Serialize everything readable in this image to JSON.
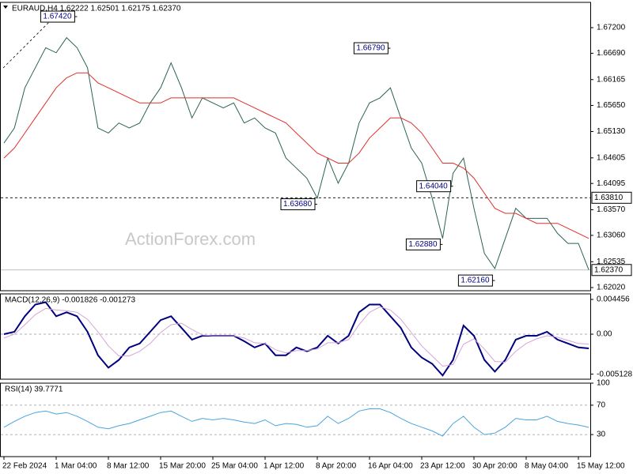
{
  "chart_data": [
    {
      "type": "line",
      "title": "EURAUD,H4 1.62222 1.62501 1.62175 1.62370",
      "watermark": "ActionForex.com",
      "ylim": [
        1.61957,
        1.67704
      ],
      "yticks": [
        {
          "value": 1.672,
          "label": "1.67200"
        },
        {
          "value": 1.6669,
          "label": "1.66690"
        },
        {
          "value": 1.66165,
          "label": "1.66165"
        },
        {
          "value": 1.6565,
          "label": "1.65650"
        },
        {
          "value": 1.6513,
          "label": "1.65130"
        },
        {
          "value": 1.64605,
          "label": "1.64605"
        },
        {
          "value": 1.64095,
          "label": "1.64095"
        },
        {
          "value": 1.6357,
          "label": "1.63570"
        },
        {
          "value": 1.6306,
          "label": "1.63060"
        },
        {
          "value": 1.62535,
          "label": "1.62535"
        },
        {
          "value": 1.6202,
          "label": "1.62020"
        }
      ],
      "series": [
        {
          "color": "#2b6357",
          "values": [
            1.649,
            1.652,
            1.66,
            1.664,
            1.668,
            1.667,
            1.67,
            1.668,
            1.664,
            1.652,
            1.651,
            1.653,
            1.652,
            1.653,
            1.657,
            1.66,
            1.665,
            1.66,
            1.654,
            1.658,
            1.657,
            1.656,
            1.657,
            1.653,
            1.654,
            1.652,
            1.651,
            1.646,
            1.644,
            1.642,
            1.638,
            1.646,
            1.641,
            1.645,
            1.653,
            1.657,
            1.658,
            1.66,
            1.654,
            1.648,
            1.645,
            1.638,
            1.63,
            1.643,
            1.646,
            1.636,
            1.627,
            1.624,
            1.63,
            1.636,
            1.634,
            1.634,
            1.634,
            1.631,
            1.629,
            1.629,
            1.6237
          ]
        },
        {
          "color": "#e0302a",
          "values": [
            1.646,
            1.648,
            1.651,
            1.654,
            1.657,
            1.66,
            1.662,
            1.663,
            1.663,
            1.661,
            1.66,
            1.659,
            1.658,
            1.657,
            1.657,
            1.657,
            1.658,
            1.658,
            1.658,
            1.658,
            1.658,
            1.658,
            1.658,
            1.657,
            1.656,
            1.655,
            1.654,
            1.653,
            1.651,
            1.649,
            1.647,
            1.646,
            1.645,
            1.645,
            1.647,
            1.65,
            1.652,
            1.654,
            1.654,
            1.653,
            1.651,
            1.648,
            1.645,
            1.645,
            1.644,
            1.642,
            1.639,
            1.636,
            1.635,
            1.635,
            1.634,
            1.633,
            1.633,
            1.633,
            1.632,
            1.631,
            1.63
          ]
        }
      ],
      "annotations": [
        {
          "label": "1.67420",
          "value": 1.6742,
          "x": 7
        },
        {
          "label": "1.66790",
          "value": 1.6679,
          "x": 37
        },
        {
          "label": "1.64040",
          "value": 1.6404,
          "x": 43
        },
        {
          "label": "1.63680",
          "value": 1.6368,
          "x": 30
        },
        {
          "label": "1.62880",
          "value": 1.6288,
          "x": 42
        },
        {
          "label": "1.62160",
          "value": 1.6216,
          "x": 47
        }
      ],
      "levels": [
        {
          "value": 1.6381,
          "label": "1.63810"
        }
      ],
      "last_price": {
        "value": 1.6237,
        "label": "1.62370"
      }
    },
    {
      "type": "line",
      "title": "MACD(12,26,9) -0.001826 -0.001273",
      "ylim": [
        -0.005774,
        0.005165
      ],
      "yticks": [
        0.004456,
        {
          "value": 0,
          "label": "0.00"
        },
        -0.005128
      ],
      "levels": [
        0
      ],
      "series": [
        {
          "color": "#000080",
          "values": [
            0,
            0.0003,
            0.0023,
            0.0038,
            0.0041,
            0.0023,
            0.0028,
            0.0023,
            0.0003,
            -0.0027,
            -0.0043,
            -0.0033,
            -0.0017,
            -0.0012,
            0.0003,
            0.0018,
            0.0023,
            0.0008,
            -0.0007,
            -0.0002,
            -0.0002,
            -0.0002,
            -0.0002,
            -0.0009,
            -0.0017,
            -0.0012,
            -0.0027,
            -0.0027,
            -0.0017,
            -0.0022,
            -0.0017,
            -0.0002,
            -0.0012,
            -0.0002,
            0.0028,
            0.0038,
            0.0038,
            0.0023,
            0.0008,
            -0.0017,
            -0.003,
            -0.0038,
            -0.0053,
            -0.0033,
            0.0011,
            -0.0002,
            -0.0033,
            -0.0048,
            -0.0033,
            -0.0007,
            -0.0002,
            -0.0002,
            0.0003,
            -0.0007,
            -0.0012,
            -0.0017,
            -0.001826
          ]
        },
        {
          "color": "#d4a6d4",
          "values": [
            -0.0005,
            0,
            0.0012,
            0.0025,
            0.0033,
            0.0031,
            0.003,
            0.0028,
            0.0019,
            0.0003,
            -0.0015,
            -0.0028,
            -0.0028,
            -0.0022,
            -0.0012,
            0.0002,
            0.0012,
            0.0014,
            0.0006,
            -0.0001,
            -0.0002,
            -0.0002,
            -0.0002,
            -0.0005,
            -0.0011,
            -0.0012,
            -0.002,
            -0.0024,
            -0.0021,
            -0.0021,
            -0.0019,
            -0.0011,
            -0.0011,
            -0.0007,
            0.0012,
            0.0028,
            0.0035,
            0.0031,
            0.0019,
            0.0002,
            -0.0015,
            -0.0028,
            -0.0041,
            -0.0039,
            -0.0013,
            -0.0006,
            -0.0019,
            -0.0035,
            -0.0036,
            -0.0022,
            -0.0012,
            -0.0006,
            -0.0002,
            -0.0004,
            -0.0008,
            -0.0012,
            -0.001273
          ]
        }
      ]
    },
    {
      "type": "line",
      "title": "RSI(14) 39.7771",
      "ylim": [
        0,
        100
      ],
      "yticks": [
        100,
        70,
        30
      ],
      "levels": [
        70,
        30
      ],
      "series": [
        {
          "color": "#4aa3df",
          "values": [
            40,
            48,
            55,
            60,
            62,
            58,
            60,
            55,
            48,
            40,
            38,
            42,
            45,
            50,
            55,
            60,
            62,
            55,
            48,
            52,
            50,
            52,
            50,
            47,
            45,
            50,
            42,
            45,
            44,
            40,
            42,
            55,
            45,
            52,
            62,
            65,
            65,
            60,
            52,
            45,
            40,
            35,
            28,
            45,
            55,
            40,
            30,
            32,
            40,
            52,
            50,
            50,
            55,
            48,
            45,
            43,
            39.7771
          ]
        }
      ],
      "categories": [
        "22 Feb 2024",
        null,
        null,
        null,
        null,
        "1 Mar 04:00",
        null,
        null,
        null,
        null,
        "8 Mar 12:00",
        null,
        null,
        null,
        null,
        "15 Mar 20:00",
        null,
        null,
        null,
        null,
        "25 Mar 04:00",
        null,
        null,
        null,
        null,
        "1 Apr 12:00",
        null,
        null,
        null,
        null,
        "8 Apr 20:00",
        null,
        null,
        null,
        null,
        "16 Apr 04:00",
        null,
        null,
        null,
        null,
        "23 Apr 12:00",
        null,
        null,
        null,
        null,
        "30 Apr 20:00",
        null,
        null,
        null,
        null,
        "8 May 04:00",
        null,
        null,
        null,
        null,
        "15 May 12:00",
        null
      ]
    }
  ]
}
